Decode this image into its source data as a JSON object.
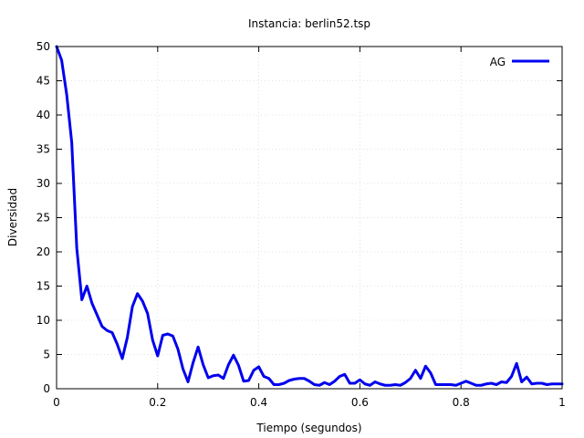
{
  "chart_data": {
    "type": "line",
    "title": "Instancia: berlin52.tsp",
    "xlabel": "Tiempo (segundos)",
    "ylabel": "Diversidad",
    "xlim": [
      0,
      1
    ],
    "ylim": [
      0,
      50
    ],
    "x_ticks": [
      "0",
      "0.2",
      "0.4",
      "0.6",
      "0.8",
      "1"
    ],
    "y_ticks": [
      "0",
      "5",
      "10",
      "15",
      "20",
      "25",
      "30",
      "35",
      "40",
      "45",
      "50"
    ],
    "grid": true,
    "legend_position": "top-right",
    "series": [
      {
        "name": "AG",
        "color": "#0000ee",
        "x": [
          0,
          0.01,
          0.02,
          0.03,
          0.04,
          0.05,
          0.06,
          0.07,
          0.08,
          0.09,
          0.1,
          0.11,
          0.12,
          0.13,
          0.14,
          0.15,
          0.16,
          0.17,
          0.18,
          0.19,
          0.2,
          0.21,
          0.22,
          0.23,
          0.24,
          0.25,
          0.26,
          0.27,
          0.28,
          0.29,
          0.3,
          0.31,
          0.32,
          0.33,
          0.34,
          0.35,
          0.36,
          0.37,
          0.38,
          0.39,
          0.4,
          0.41,
          0.42,
          0.43,
          0.44,
          0.45,
          0.46,
          0.47,
          0.48,
          0.49,
          0.5,
          0.51,
          0.52,
          0.53,
          0.54,
          0.55,
          0.56,
          0.57,
          0.58,
          0.59,
          0.6,
          0.61,
          0.62,
          0.63,
          0.64,
          0.65,
          0.66,
          0.67,
          0.68,
          0.69,
          0.7,
          0.71,
          0.72,
          0.73,
          0.74,
          0.75,
          0.76,
          0.77,
          0.78,
          0.79,
          0.8,
          0.81,
          0.82,
          0.83,
          0.84,
          0.85,
          0.86,
          0.87,
          0.88,
          0.89,
          0.9,
          0.91,
          0.92,
          0.93,
          0.94,
          0.95,
          0.96,
          0.97,
          0.98,
          0.99,
          1.0
        ],
        "y": [
          50,
          48,
          43,
          36,
          20.5,
          13,
          15,
          12.5,
          10.8,
          9.1,
          8.5,
          8.2,
          6.5,
          4.4,
          7.5,
          12,
          13.9,
          12.8,
          11,
          7.1,
          4.8,
          7.8,
          8,
          7.7,
          5.8,
          2.9,
          1,
          3.8,
          6.1,
          3.5,
          1.6,
          1.9,
          2,
          1.5,
          3.5,
          4.9,
          3.4,
          1.1,
          1.2,
          2.7,
          3.2,
          1.8,
          1.5,
          0.6,
          0.6,
          0.8,
          1.2,
          1.4,
          1.5,
          1.5,
          1.1,
          0.6,
          0.5,
          0.9,
          0.6,
          1.1,
          1.8,
          2.1,
          0.8,
          0.8,
          1.3,
          0.7,
          0.5,
          1,
          0.7,
          0.5,
          0.5,
          0.6,
          0.5,
          0.9,
          1.5,
          2.7,
          1.5,
          3.3,
          2.3,
          0.6,
          0.6,
          0.6,
          0.6,
          0.5,
          0.8,
          1.1,
          0.8,
          0.5,
          0.5,
          0.7,
          0.8,
          0.6,
          1,
          0.9,
          1.8,
          3.7,
          1,
          1.7,
          0.7,
          0.8,
          0.8,
          0.6,
          0.7,
          0.7,
          0.7
        ]
      }
    ]
  }
}
